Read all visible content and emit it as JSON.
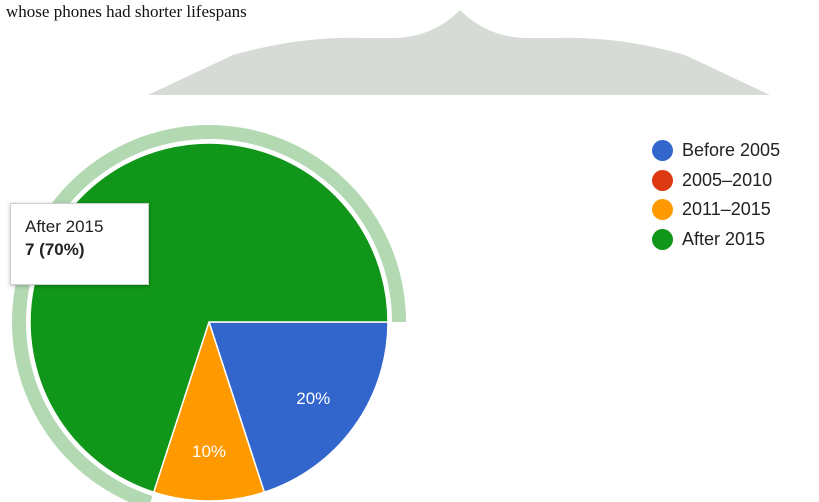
{
  "document": {
    "text_fragment": "whose phones had shorter lifespans"
  },
  "colors": {
    "banner": "#d6dbd6",
    "highlight_ring": "#b3d9b3",
    "slice_border": "#ffffff",
    "slice_label": "#ffffff"
  },
  "chart_data": {
    "type": "pie",
    "categories": [
      "Before 2005",
      "2005–2010",
      "2011–2015",
      "After 2015"
    ],
    "values": [
      2,
      0,
      1,
      7
    ],
    "colors": [
      "#3366cc",
      "#dc3912",
      "#ff9900",
      "#109618"
    ],
    "slice_labels": [
      "20%",
      "",
      "10%",
      ""
    ],
    "legend_position": "right",
    "highlighted_category": "After 2015",
    "tooltip": {
      "title": "After 2015",
      "value": "7 (70%)"
    }
  }
}
